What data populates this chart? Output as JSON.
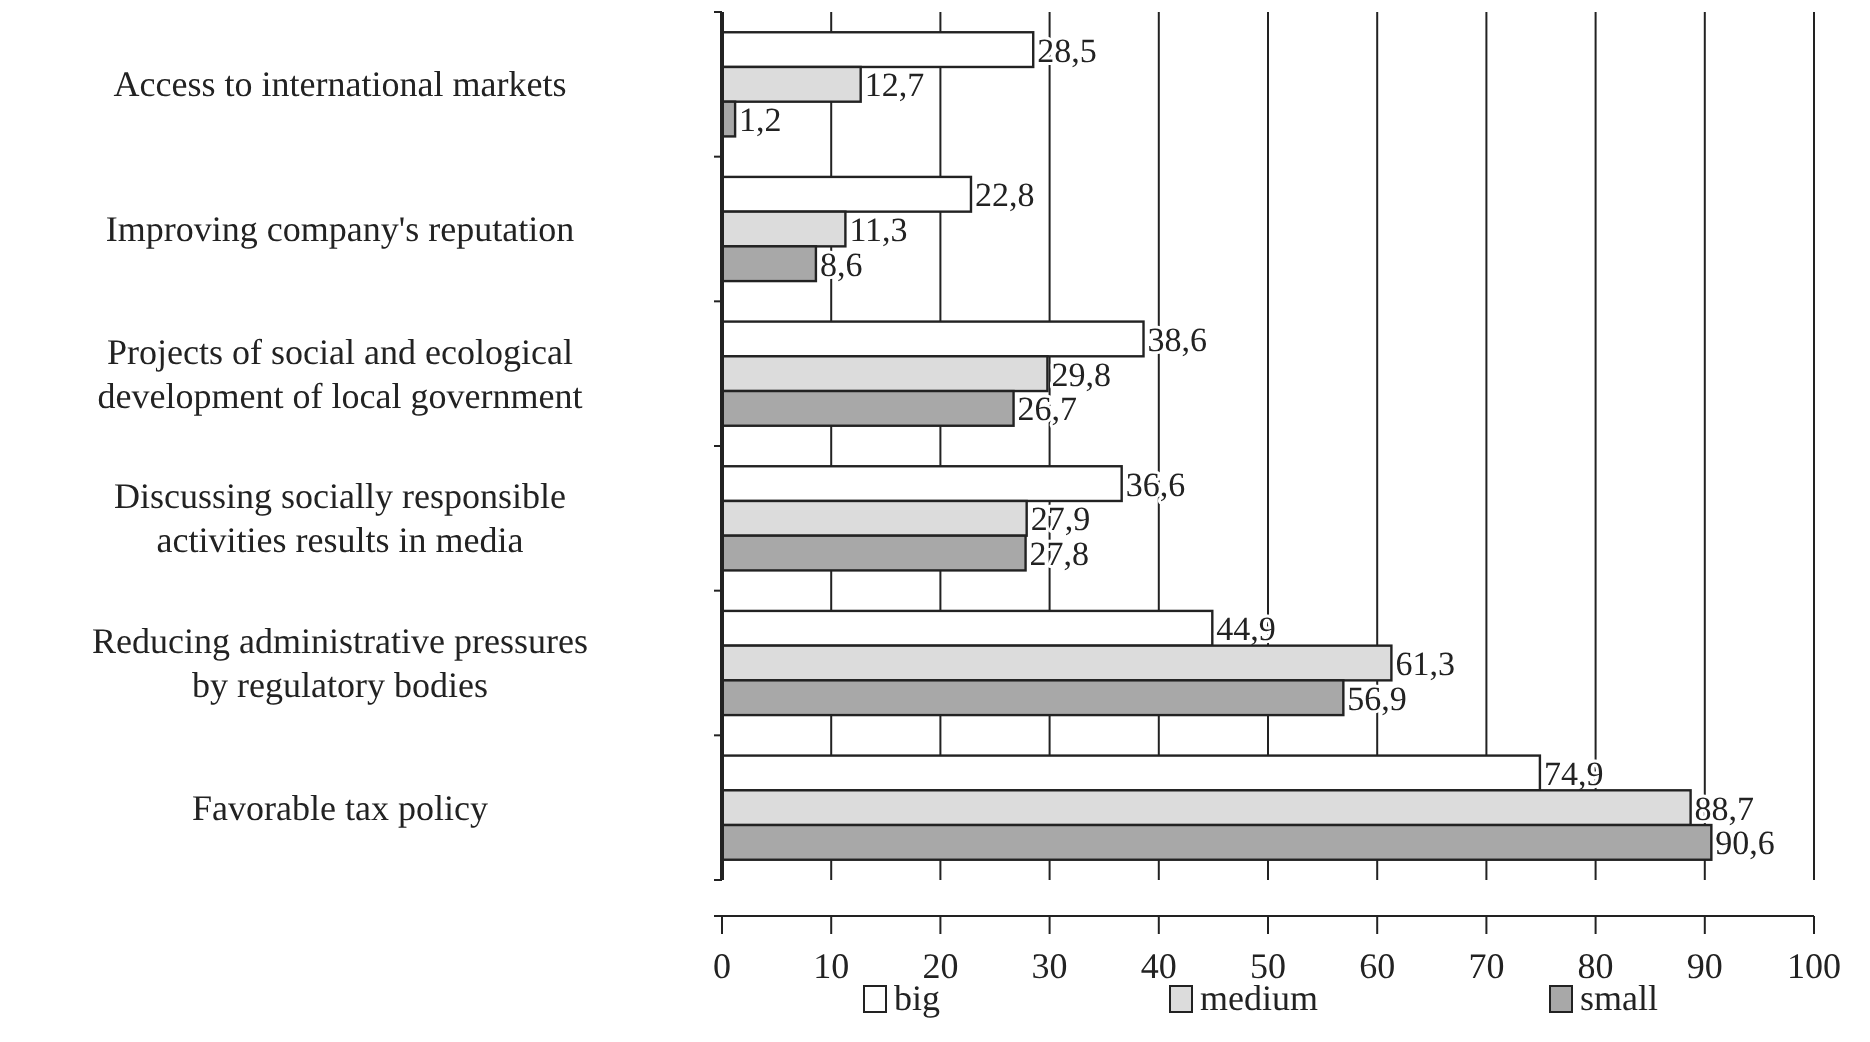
{
  "chart_data": {
    "type": "bar",
    "orientation": "horizontal",
    "categories": [
      "Access to international markets",
      "Improving company's reputation",
      "Projects of social and ecological development of local government",
      "Discussing socially responsible activities results in media",
      "Reducing administrative pressures by regulatory bodies",
      "Favorable tax policy"
    ],
    "series": [
      {
        "name": "big",
        "color": "#ffffff",
        "values": [
          28.5,
          22.8,
          38.6,
          36.6,
          44.9,
          74.9
        ],
        "value_labels": [
          "28,5",
          "22,8",
          "38,6",
          "36,6",
          "44,9",
          "74,9"
        ]
      },
      {
        "name": "medium",
        "color": "#dcdcdc",
        "values": [
          12.7,
          11.3,
          29.8,
          27.9,
          61.3,
          88.7
        ],
        "value_labels": [
          "12,7",
          "11,3",
          "29,8",
          "27,9",
          "61,3",
          "88,7"
        ]
      },
      {
        "name": "small",
        "color": "#a8a8a8",
        "values": [
          1.2,
          8.6,
          26.7,
          27.8,
          56.9,
          90.6
        ],
        "value_labels": [
          "1,2",
          "8,6",
          "26,7",
          "27,8",
          "56,9",
          "90,6"
        ]
      }
    ],
    "xlim": [
      0,
      100
    ],
    "xticks": [
      0,
      10,
      20,
      30,
      40,
      50,
      60,
      70,
      80,
      90,
      100
    ],
    "grid": "x",
    "legend": "bottom"
  }
}
